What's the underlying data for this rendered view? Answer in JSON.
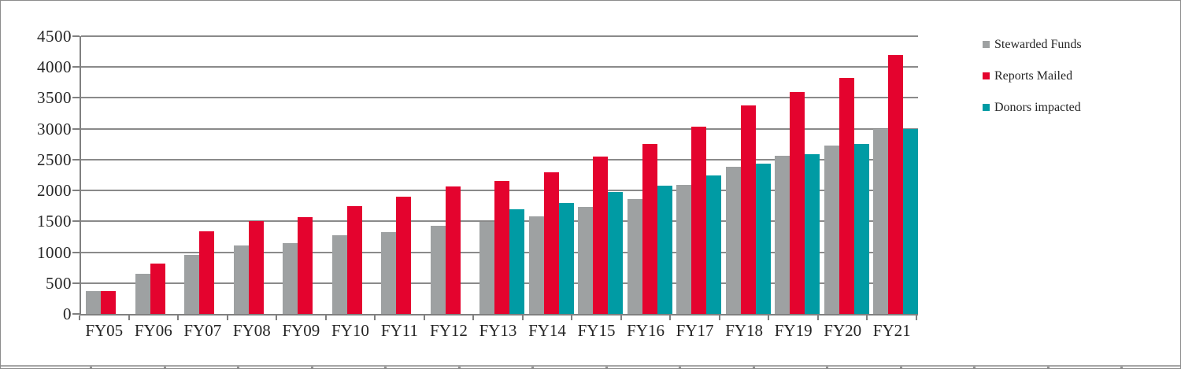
{
  "window": {
    "background": "#ffffff",
    "border_color": "#8c8c8c"
  },
  "chart_data": {
    "type": "bar",
    "categories": [
      "FY05",
      "FY06",
      "FY07",
      "FY08",
      "FY09",
      "FY10",
      "FY11",
      "FY12",
      "FY13",
      "FY14",
      "FY15",
      "FY16",
      "FY17",
      "FY18",
      "FY19",
      "FY20",
      "FY21"
    ],
    "series": [
      {
        "name": "Stewarded Funds",
        "color": "#9EA1A2",
        "values": [
          370,
          650,
          960,
          1110,
          1150,
          1270,
          1330,
          1430,
          1490,
          1580,
          1730,
          1860,
          2090,
          2380,
          2560,
          2730,
          3000
        ]
      },
      {
        "name": "Reports Mailed",
        "color": "#E4032E",
        "values": [
          370,
          810,
          1340,
          1500,
          1570,
          1750,
          1900,
          2060,
          2160,
          2290,
          2550,
          2750,
          3040,
          3380,
          3600,
          3830,
          4200
        ]
      },
      {
        "name": "Donors impacted",
        "color": "#009BA4",
        "values": [
          null,
          null,
          null,
          null,
          null,
          null,
          null,
          null,
          1700,
          1800,
          1980,
          2080,
          2240,
          2440,
          2590,
          2750,
          3000
        ]
      }
    ],
    "ylim": [
      0,
      4500
    ],
    "ytick_step": 500,
    "ytick_labels": [
      "0",
      "500",
      "1000",
      "1500",
      "2000",
      "2500",
      "3000",
      "3500",
      "4000",
      "4500"
    ],
    "grid": "horizontal",
    "legend_position": "right",
    "axis_color": "#808080",
    "grid_color": "#8a8a8a",
    "text_color": "#262626"
  }
}
